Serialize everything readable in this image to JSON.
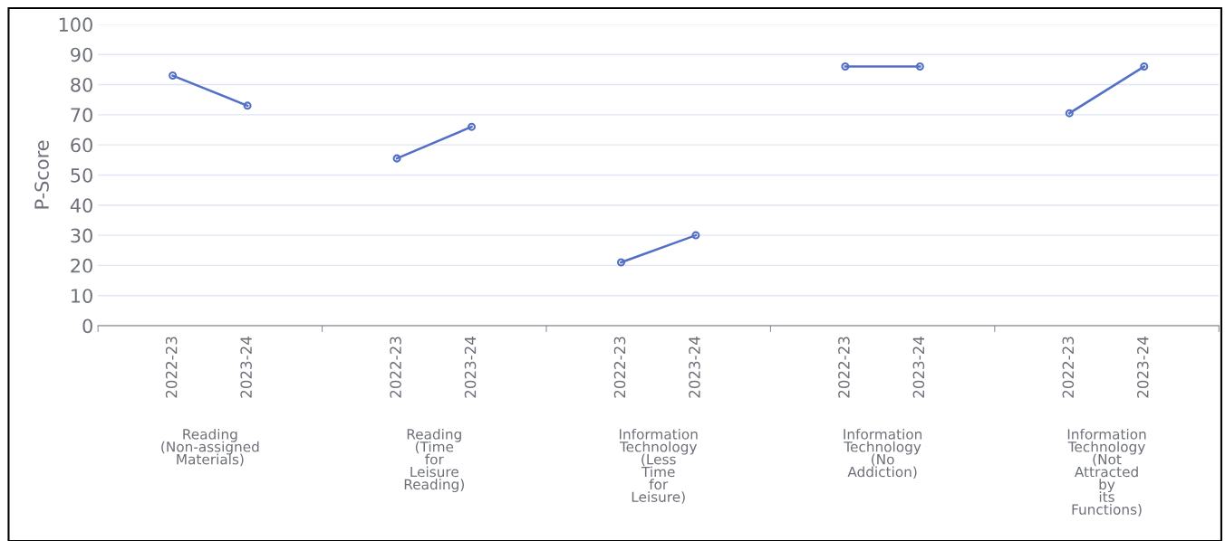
{
  "chart_data": {
    "type": "line",
    "ylabel": "P-Score",
    "categories": [
      "2022-23",
      "2023-24",
      null,
      "2022-23",
      "2023-24",
      null,
      "2022-23",
      "2023-24",
      null,
      "2022-23",
      "2023-24",
      null,
      "2022-23",
      "2023-24"
    ],
    "series": [
      {
        "color": "#5470c6",
        "values": [
          83,
          73,
          null,
          null,
          null,
          null,
          null,
          null,
          null,
          null,
          null,
          null,
          null,
          null
        ]
      },
      {
        "color": "#5470c6",
        "values": [
          null,
          null,
          null,
          55.5,
          66,
          null,
          null,
          null,
          null,
          null,
          null,
          null,
          null,
          null
        ]
      },
      {
        "color": "#5470c6",
        "values": [
          null,
          null,
          null,
          null,
          null,
          null,
          21,
          30,
          null,
          null,
          null,
          null,
          null,
          null
        ]
      },
      {
        "color": "#5470c6",
        "values": [
          null,
          null,
          null,
          null,
          null,
          null,
          null,
          null,
          null,
          86,
          86,
          null,
          null,
          null
        ]
      },
      {
        "color": "#5470c6",
        "values": [
          null,
          null,
          null,
          null,
          null,
          null,
          null,
          null,
          null,
          null,
          null,
          null,
          70.5,
          86
        ]
      }
    ],
    "annotations": [
      "Reading\n(Non-assigned\nMaterials)",
      "Reading\n(Time\nfor\nLeisure\nReading)",
      "Information\nTechnology\n(Less\nTime\nfor\nLeisure)",
      "Information\nTechnology\n(No\nAddiction)",
      "Information\nTechnology\n(Not\nAttracted\nby\nits\nFunctions)"
    ],
    "ylim": [
      0,
      100
    ],
    "yticks": [
      0,
      10,
      20,
      30,
      40,
      50,
      60,
      70,
      80,
      90,
      100
    ],
    "grid": "y",
    "marker": "circle",
    "line_style": "solid"
  }
}
